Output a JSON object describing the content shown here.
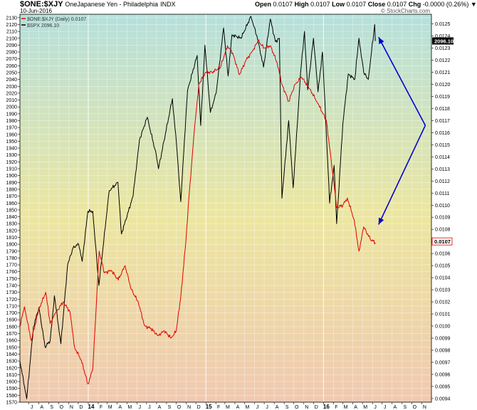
{
  "header": {
    "symbol": "$ONE:$XJY",
    "description": "OneJapanese Yen - Philadelphia",
    "exchange": "INDX",
    "date": "10-Jun-2016",
    "open_label": "Open",
    "open": "0.0107",
    "high_label": "High",
    "high": "0.0107",
    "low_label": "Low",
    "low": "0.0107",
    "close_label": "Close",
    "close": "0.0107",
    "chg_label": "Chg",
    "chg": "-0.0000 (0.26%)",
    "chg_arrow": "▼"
  },
  "watermark": "© StockCharts.com",
  "legend": {
    "series1": "$ONE:$XJY (Daily) 0.0107",
    "series2": "$SPX 2096.10"
  },
  "colors": {
    "xjy": "#e00000",
    "spx": "#000000",
    "arrow": "#0000d0",
    "bg_top": "#b6e0dc",
    "bg_mid": "#ece6a0",
    "bg_bottom": "#f0c9b0"
  },
  "chart_data": {
    "type": "line",
    "x_start": "2013-06-03",
    "x_end": "2016-12-01",
    "xtick_labels": [
      "J",
      "A",
      "S",
      "O",
      "N",
      "D",
      "14",
      "F",
      "M",
      "A",
      "M",
      "J",
      "J",
      "A",
      "S",
      "O",
      "N",
      "D",
      "15",
      "F",
      "M",
      "A",
      "M",
      "J",
      "J",
      "A",
      "S",
      "O",
      "N",
      "D",
      "16",
      "F",
      "M",
      "A",
      "M",
      "J",
      "J",
      "A",
      "S",
      "O",
      "N"
    ],
    "left_axis": {
      "series": "$SPX",
      "ylim": [
        1570,
        2135
      ],
      "ticks": [
        1570,
        1580,
        1590,
        1600,
        1610,
        1620,
        1630,
        1640,
        1650,
        1660,
        1670,
        1680,
        1690,
        1700,
        1710,
        1720,
        1730,
        1740,
        1750,
        1760,
        1770,
        1780,
        1790,
        1800,
        1810,
        1820,
        1830,
        1840,
        1850,
        1860,
        1870,
        1880,
        1890,
        1900,
        1910,
        1920,
        1930,
        1940,
        1950,
        1960,
        1970,
        1980,
        1990,
        2000,
        2010,
        2020,
        2030,
        2040,
        2050,
        2060,
        2070,
        2080,
        2090,
        2100,
        2110,
        2120,
        2130
      ]
    },
    "right_axis": {
      "series": "$ONE:$XJY",
      "ylim": [
        0.00937,
        0.01258
      ],
      "ticks": [
        0.0094,
        0.0095,
        0.0096,
        0.0097,
        0.0098,
        0.0099,
        0.01,
        0.0101,
        0.0102,
        0.0103,
        0.0104,
        0.0105,
        0.0106,
        0.0107,
        0.0108,
        0.0109,
        0.011,
        0.0111,
        0.0112,
        0.0113,
        0.0114,
        0.0115,
        0.0116,
        0.0117,
        0.0118,
        0.0119,
        0.012,
        0.0121,
        0.0122,
        0.0123,
        0.0124,
        0.0125
      ],
      "tick_labels": [
        "0.0094",
        "0.0095",
        "0.0096",
        "0.0097",
        "0.0098",
        "0.0099",
        "0.0100",
        "0.0101",
        "0.0102",
        "0.0103",
        "0.0104",
        "0.0105",
        "0.0106",
        "0.0107",
        "0.0108",
        "0.0109",
        "0.0110",
        "0.0111",
        "0.0112",
        "0.0113",
        "0.0114",
        "0.0115",
        "0.0116",
        "0.0117",
        "0.0118",
        "0.0119",
        "0.0120",
        "0.0121",
        "0.0122",
        "0.0123",
        "0.0124",
        "0.0125"
      ]
    },
    "last_value_tags": {
      "spx": "2096.10",
      "xjy": "0.0107"
    },
    "series": [
      {
        "name": "$SPX",
        "axis": "left",
        "color": "#000000",
        "points": [
          [
            "2013-06-03",
            1630
          ],
          [
            "2013-06-24",
            1575
          ],
          [
            "2013-07-15",
            1680
          ],
          [
            "2013-08-01",
            1708
          ],
          [
            "2013-08-20",
            1650
          ],
          [
            "2013-09-05",
            1660
          ],
          [
            "2013-09-18",
            1725
          ],
          [
            "2013-10-08",
            1655
          ],
          [
            "2013-10-29",
            1770
          ],
          [
            "2013-11-15",
            1795
          ],
          [
            "2013-12-02",
            1800
          ],
          [
            "2013-12-13",
            1775
          ],
          [
            "2013-12-31",
            1848
          ],
          [
            "2014-01-15",
            1848
          ],
          [
            "2014-02-03",
            1740
          ],
          [
            "2014-03-07",
            1878
          ],
          [
            "2014-04-03",
            1890
          ],
          [
            "2014-04-14",
            1815
          ],
          [
            "2014-05-20",
            1870
          ],
          [
            "2014-06-09",
            1952
          ],
          [
            "2014-07-03",
            1985
          ],
          [
            "2014-07-31",
            1930
          ],
          [
            "2014-08-07",
            1910
          ],
          [
            "2014-09-19",
            2012
          ],
          [
            "2014-10-02",
            1945
          ],
          [
            "2014-10-15",
            1862
          ],
          [
            "2014-11-05",
            2024
          ],
          [
            "2014-12-05",
            2075
          ],
          [
            "2014-12-16",
            1973
          ],
          [
            "2014-12-29",
            2090
          ],
          [
            "2015-01-15",
            1992
          ],
          [
            "2015-02-02",
            2020
          ],
          [
            "2015-02-25",
            2115
          ],
          [
            "2015-03-11",
            2045
          ],
          [
            "2015-03-23",
            2105
          ],
          [
            "2015-04-20",
            2100
          ],
          [
            "2015-05-21",
            2132
          ],
          [
            "2015-06-10",
            2100
          ],
          [
            "2015-06-29",
            2058
          ],
          [
            "2015-07-20",
            2128
          ],
          [
            "2015-08-05",
            2095
          ],
          [
            "2015-08-17",
            2100
          ],
          [
            "2015-08-25",
            1867
          ],
          [
            "2015-09-15",
            1980
          ],
          [
            "2015-09-29",
            1882
          ],
          [
            "2015-10-22",
            2050
          ],
          [
            "2015-11-03",
            2110
          ],
          [
            "2015-11-13",
            2025
          ],
          [
            "2015-12-01",
            2100
          ],
          [
            "2015-12-15",
            2022
          ],
          [
            "2015-12-29",
            2080
          ],
          [
            "2016-01-20",
            1860
          ],
          [
            "2016-02-03",
            1915
          ],
          [
            "2016-02-11",
            1830
          ],
          [
            "2016-03-01",
            1975
          ],
          [
            "2016-03-18",
            2048
          ],
          [
            "2016-04-07",
            2040
          ],
          [
            "2016-04-20",
            2100
          ],
          [
            "2016-05-05",
            2050
          ],
          [
            "2016-05-19",
            2040
          ],
          [
            "2016-06-08",
            2120
          ],
          [
            "2016-06-10",
            2096
          ]
        ]
      },
      {
        "name": "$ONE:$XJY",
        "axis": "right",
        "color": "#e00000",
        "points": [
          [
            "2013-06-03",
            0.01
          ],
          [
            "2013-06-17",
            0.01016
          ],
          [
            "2013-07-08",
            0.00988
          ],
          [
            "2013-08-01",
            0.01014
          ],
          [
            "2013-08-22",
            0.01028
          ],
          [
            "2013-09-05",
            0.01002
          ],
          [
            "2013-09-20",
            0.0101
          ],
          [
            "2013-10-15",
            0.0102
          ],
          [
            "2013-11-05",
            0.01012
          ],
          [
            "2013-11-20",
            0.00982
          ],
          [
            "2013-12-10",
            0.00972
          ],
          [
            "2013-12-31",
            0.00952
          ],
          [
            "2014-01-15",
            0.00964
          ],
          [
            "2014-02-04",
            0.01062
          ],
          [
            "2014-02-20",
            0.01044
          ],
          [
            "2014-03-14",
            0.01046
          ],
          [
            "2014-04-04",
            0.01038
          ],
          [
            "2014-04-25",
            0.0105
          ],
          [
            "2014-05-15",
            0.0103
          ],
          [
            "2014-06-05",
            0.0102
          ],
          [
            "2014-06-25",
            0.01
          ],
          [
            "2014-07-15",
            0.00998
          ],
          [
            "2014-08-05",
            0.00992
          ],
          [
            "2014-08-25",
            0.00996
          ],
          [
            "2014-09-15",
            0.0099
          ],
          [
            "2014-10-01",
            0.00996
          ],
          [
            "2014-10-15",
            0.01024
          ],
          [
            "2014-10-31",
            0.0107
          ],
          [
            "2014-11-10",
            0.01108
          ],
          [
            "2014-11-25",
            0.01158
          ],
          [
            "2014-12-10",
            0.012
          ],
          [
            "2014-12-31",
            0.0121
          ],
          [
            "2015-01-20",
            0.0121
          ],
          [
            "2015-02-15",
            0.01214
          ],
          [
            "2015-03-09",
            0.01232
          ],
          [
            "2015-03-25",
            0.01226
          ],
          [
            "2015-04-15",
            0.01208
          ],
          [
            "2015-05-06",
            0.0122
          ],
          [
            "2015-05-27",
            0.01228
          ],
          [
            "2015-06-12",
            0.01236
          ],
          [
            "2015-07-01",
            0.0123
          ],
          [
            "2015-07-20",
            0.01232
          ],
          [
            "2015-08-10",
            0.01218
          ],
          [
            "2015-08-25",
            0.012
          ],
          [
            "2015-09-15",
            0.01186
          ],
          [
            "2015-10-05",
            0.012
          ],
          [
            "2015-10-25",
            0.01206
          ],
          [
            "2015-11-20",
            0.01196
          ],
          [
            "2015-12-15",
            0.01184
          ],
          [
            "2016-01-10",
            0.0117
          ],
          [
            "2016-01-29",
            0.01128
          ],
          [
            "2016-02-11",
            0.01098
          ],
          [
            "2016-03-01",
            0.011
          ],
          [
            "2016-03-15",
            0.01106
          ],
          [
            "2016-04-05",
            0.01088
          ],
          [
            "2016-04-20",
            0.01062
          ],
          [
            "2016-05-05",
            0.01082
          ],
          [
            "2016-05-25",
            0.01072
          ],
          [
            "2016-06-10",
            0.01069
          ]
        ]
      }
    ],
    "annotations": [
      {
        "type": "arrow",
        "from": [
          "2016-11-12",
          0.01166
        ],
        "to": [
          "2016-06-20",
          0.01239
        ]
      },
      {
        "type": "arrow",
        "from": [
          "2016-11-12",
          0.01166
        ],
        "to": [
          "2016-06-20",
          0.01084
        ]
      }
    ]
  }
}
